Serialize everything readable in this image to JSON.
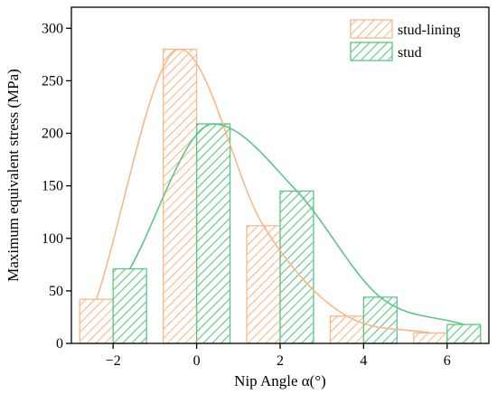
{
  "chart_data": {
    "type": "bar",
    "xlabel": "Nip Angle α(°)",
    "ylabel": "Maximum equivalent stress (MPa)",
    "xlim": [
      -3,
      7
    ],
    "ylim": [
      0,
      320
    ],
    "x_ticks": [
      -2,
      0,
      2,
      4,
      6
    ],
    "x_tick_labels": [
      "−2",
      "0",
      "2",
      "4",
      "6"
    ],
    "y_ticks": [
      0,
      50,
      100,
      150,
      200,
      250,
      300
    ],
    "grid": false,
    "legend_position": "top-right",
    "bar_width": 0.8,
    "series": [
      {
        "name": "stud-lining",
        "color": "#F8B88A",
        "x": [
          -2.4,
          -0.4,
          1.6,
          3.6,
          5.6
        ],
        "values": [
          42,
          280,
          112,
          26,
          10
        ],
        "fit_curve": true
      },
      {
        "name": "stud",
        "color": "#5CC783",
        "x": [
          -1.6,
          0.4,
          2.4,
          4.4,
          6.4
        ],
        "values": [
          71,
          209,
          145,
          44,
          18
        ],
        "fit_curve": true
      }
    ]
  }
}
